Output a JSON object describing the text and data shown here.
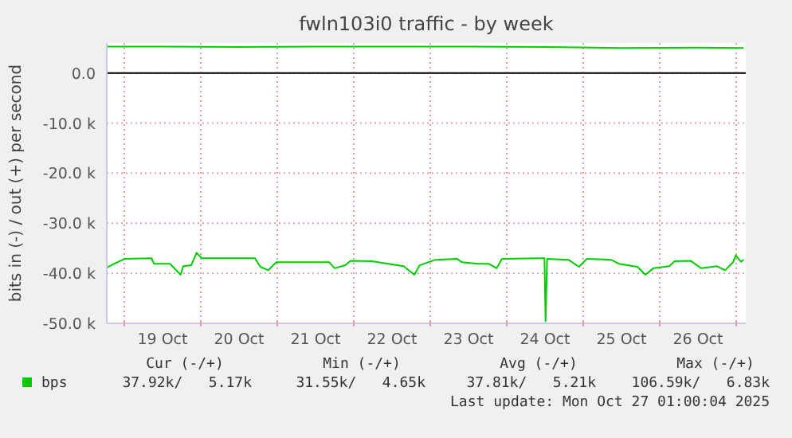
{
  "chart_data": {
    "type": "line",
    "title": "fwln103i0 traffic - by week",
    "ylabel": "bits in (-) / out (+) per second",
    "xlim": [
      "2025-10-18T18:30",
      "2025-10-27T03:00"
    ],
    "xticks": [
      {
        "value": "2025-10-19T00:00",
        "label": null
      },
      {
        "value": "2025-10-19T12:00",
        "label": "19 Oct"
      },
      {
        "value": "2025-10-20T00:00",
        "label": null
      },
      {
        "value": "2025-10-20T12:00",
        "label": "20 Oct"
      },
      {
        "value": "2025-10-21T00:00",
        "label": null
      },
      {
        "value": "2025-10-21T12:00",
        "label": "21 Oct"
      },
      {
        "value": "2025-10-22T00:00",
        "label": null
      },
      {
        "value": "2025-10-22T12:00",
        "label": "22 Oct"
      },
      {
        "value": "2025-10-23T00:00",
        "label": null
      },
      {
        "value": "2025-10-23T12:00",
        "label": "23 Oct"
      },
      {
        "value": "2025-10-24T00:00",
        "label": null
      },
      {
        "value": "2025-10-24T12:00",
        "label": "24 Oct"
      },
      {
        "value": "2025-10-25T00:00",
        "label": null
      },
      {
        "value": "2025-10-25T12:00",
        "label": "25 Oct"
      },
      {
        "value": "2025-10-26T00:00",
        "label": null
      },
      {
        "value": "2025-10-26T12:00",
        "label": "26 Oct"
      },
      {
        "value": "2025-10-27T00:00",
        "label": null
      }
    ],
    "ylim": [
      -50000,
      6000
    ],
    "yticks": [
      {
        "value": -50000,
        "label": "-50.0 k"
      },
      {
        "value": -40000,
        "label": "-40.0 k"
      },
      {
        "value": -30000,
        "label": "-30.0 k"
      },
      {
        "value": -20000,
        "label": "-20.0 k"
      },
      {
        "value": -10000,
        "label": "-10.0 k"
      },
      {
        "value": 0,
        "label": "0.0"
      }
    ],
    "grid": true,
    "legend": "bottom left",
    "marker": "none",
    "line_style": "solid",
    "ref_lines": [
      {
        "axis": "y",
        "value": 0,
        "color": "#000000"
      }
    ],
    "series": [
      {
        "name": "bps",
        "color": "#00cc00",
        "x": [
          "2025-10-18T18:30",
          "2025-10-18T20:50",
          "2025-10-19T00:10",
          "2025-10-19T08:30",
          "2025-10-19T09:20",
          "2025-10-19T14:20",
          "2025-10-19T17:40",
          "2025-10-19T18:30",
          "2025-10-19T21:00",
          "2025-10-19T22:40",
          "2025-10-20T00:20",
          "2025-10-20T17:00",
          "2025-10-20T18:40",
          "2025-10-20T21:10",
          "2025-10-20T23:40",
          "2025-10-21T16:20",
          "2025-10-21T18:00",
          "2025-10-21T21:20",
          "2025-10-21T23:00",
          "2025-10-22T05:40",
          "2025-10-22T15:40",
          "2025-10-22T19:00",
          "2025-10-22T20:40",
          "2025-10-23T01:40",
          "2025-10-23T08:20",
          "2025-10-23T10:00",
          "2025-10-23T15:00",
          "2025-10-23T18:20",
          "2025-10-23T20:50",
          "2025-10-23T22:30",
          "2025-10-24T11:00",
          "2025-10-24T11:50",
          "2025-10-24T12:10",
          "2025-10-24T12:40",
          "2025-10-24T19:20",
          "2025-10-24T22:40",
          "2025-10-25T01:10",
          "2025-10-25T08:40",
          "2025-10-25T11:10",
          "2025-10-25T17:00",
          "2025-10-25T19:30",
          "2025-10-25T22:00",
          "2025-10-26T03:00",
          "2025-10-26T04:40",
          "2025-10-26T09:40",
          "2025-10-26T13:00",
          "2025-10-26T18:00",
          "2025-10-26T20:30",
          "2025-10-26T23:00",
          "2025-10-26T23:50",
          "2025-10-27T01:30",
          "2025-10-27T02:20"
        ],
        "values": [
          -38900,
          -38100,
          -37100,
          -37000,
          -38100,
          -38100,
          -40300,
          -38600,
          -38400,
          -35900,
          -37000,
          -37000,
          -38700,
          -39400,
          -37800,
          -37800,
          -39000,
          -38400,
          -37500,
          -37600,
          -38600,
          -40300,
          -38400,
          -37300,
          -37100,
          -37800,
          -38100,
          -38100,
          -39000,
          -37100,
          -37000,
          -37000,
          -49600,
          -37100,
          -37300,
          -38700,
          -37100,
          -37300,
          -38100,
          -38700,
          -40300,
          -39000,
          -38600,
          -37600,
          -37500,
          -39000,
          -38600,
          -39400,
          -37800,
          -36400,
          -37700,
          -37300
        ]
      },
      {
        "color": "#00cc00",
        "x": [
          "2025-10-18T18:30",
          "2025-10-19T12:00",
          "2025-10-20T12:00",
          "2025-10-21T12:00",
          "2025-10-22T12:00",
          "2025-10-23T12:00",
          "2025-10-24T12:00",
          "2025-10-25T12:00",
          "2025-10-26T12:00",
          "2025-10-27T02:20"
        ],
        "values": [
          5300,
          5300,
          5200,
          5300,
          5300,
          5300,
          5200,
          5000,
          5100,
          5000
        ]
      }
    ],
    "annotations": [
      "Cur (-/+)",
      "Min (-/+)",
      "Avg (-/+)",
      "Max (-/+)",
      "37.92k/   5.17k",
      "31.55k/   4.65k",
      "37.81k/   5.21k",
      "106.59k/   6.83k",
      "Last update: Mon Oct 27 01:00:04 2025"
    ]
  }
}
